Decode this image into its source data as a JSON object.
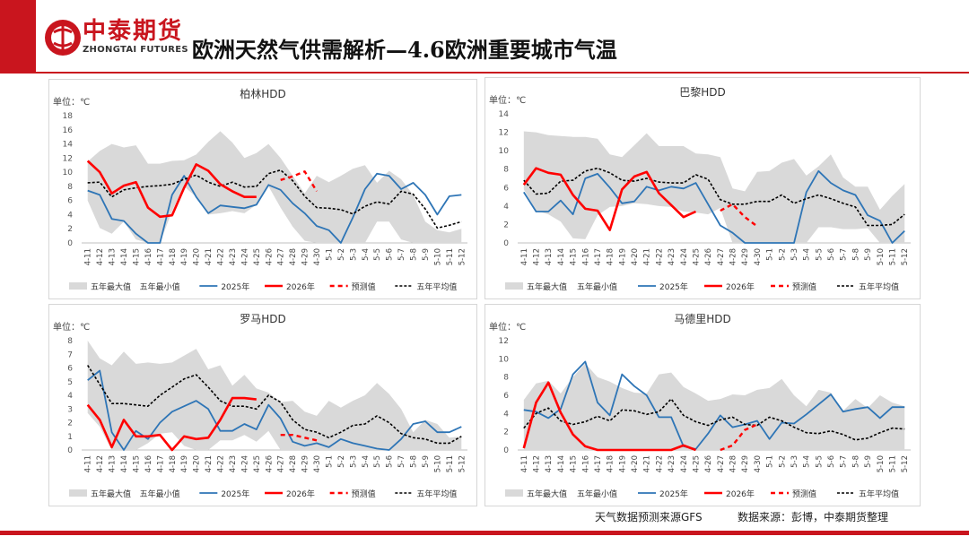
{
  "header": {
    "logo_cn": "中泰期货",
    "logo_en": "ZHONGTAI FUTURES",
    "title": "欧洲天然气供需解析—4.6欧洲重要城市气温"
  },
  "footer": {
    "source_left": "天气数据预测来源GFS",
    "source_right": "数据来源：彭博，中泰期货整理"
  },
  "colors": {
    "brand": "#c9151e",
    "band": "#d9d9d9",
    "y2025": "#2e75b6",
    "y2026": "#ff0000",
    "forecast": "#ff0000",
    "avg": "#000000"
  },
  "categories": [
    "4-11",
    "4-12",
    "4-13",
    "4-14",
    "4-15",
    "4-16",
    "4-17",
    "4-18",
    "4-19",
    "4-20",
    "4-21",
    "4-22",
    "4-23",
    "4-24",
    "4-25",
    "4-26",
    "4-27",
    "4-28",
    "4-29",
    "4-30",
    "5-1",
    "5-2",
    "5-3",
    "5-4",
    "5-5",
    "5-6",
    "5-7",
    "5-8",
    "5-9",
    "5-10",
    "5-11",
    "5-12"
  ],
  "chart_data": [
    {
      "type": "line",
      "title": "柏林HDD",
      "unit_label": "单位：℃",
      "ylim": [
        0,
        18
      ],
      "yticks": [
        0,
        2,
        4,
        6,
        8,
        10,
        12,
        14,
        16,
        18
      ],
      "legend": [
        "五年最大值",
        "五年最小值",
        "2025年",
        "2026年",
        "预测值",
        "五年平均值"
      ],
      "series": {
        "max5": [
          11.5,
          13.0,
          14.0,
          13.5,
          13.8,
          11.2,
          11.2,
          11.6,
          11.7,
          12.5,
          14.3,
          15.8,
          14.2,
          12.0,
          12.7,
          14.0,
          12.0,
          9.5,
          7.0,
          9.5,
          8.6,
          9.5,
          10.5,
          11.0,
          8.5,
          10.2,
          9.0,
          6.8,
          3.0,
          1.8,
          1.5,
          2.0
        ],
        "min5": [
          6.0,
          2.1,
          1.3,
          3.0,
          0.5,
          0,
          0,
          4.5,
          8.0,
          6.5,
          4.0,
          4.2,
          4.5,
          4.2,
          5.4,
          8.0,
          5.0,
          2.3,
          0.3,
          0,
          0,
          0,
          0,
          0,
          3.0,
          3.0,
          0.5,
          0,
          0,
          0,
          0,
          0
        ],
        "y2025": [
          7.4,
          6.8,
          3.4,
          3.1,
          1.3,
          0,
          0,
          6.8,
          9.5,
          6.5,
          4.2,
          5.3,
          5.1,
          4.9,
          5.4,
          8.2,
          7.5,
          5.6,
          4.2,
          2.4,
          1.8,
          0,
          3.6,
          7.6,
          9.8,
          9.5,
          7.6,
          8.5,
          6.8,
          4.0,
          6.6,
          6.8
        ],
        "y2026": [
          11.6,
          10.0,
          7.0,
          8.1,
          8.6,
          5.0,
          3.7,
          3.9,
          7.8,
          11.1,
          10.2,
          8.3,
          7.3,
          6.5,
          6.5,
          null,
          null,
          null,
          null,
          null,
          null,
          null,
          null,
          null,
          null,
          null,
          null,
          null,
          null,
          null,
          null,
          null
        ],
        "forecast": [
          null,
          null,
          null,
          null,
          null,
          null,
          null,
          null,
          null,
          null,
          null,
          null,
          null,
          null,
          null,
          null,
          8.9,
          9.4,
          10.1,
          7.3,
          null,
          null,
          null,
          null,
          null,
          null,
          null,
          null,
          null,
          null,
          null,
          null
        ],
        "avg5": [
          8.5,
          8.6,
          6.5,
          7.5,
          7.8,
          8.0,
          8.1,
          8.3,
          9.0,
          9.6,
          8.6,
          8.0,
          8.6,
          7.9,
          8.0,
          9.8,
          10.3,
          8.8,
          6.6,
          5.0,
          4.9,
          4.7,
          4.1,
          5.2,
          5.8,
          5.5,
          7.3,
          6.9,
          4.8,
          2.1,
          2.5,
          3.0
        ]
      }
    },
    {
      "type": "line",
      "title": "巴黎HDD",
      "unit_label": "单位：℃",
      "ylim": [
        0,
        14
      ],
      "yticks": [
        0,
        2,
        4,
        6,
        8,
        10,
        12,
        14
      ],
      "legend": [
        "五年最大值",
        "五年最小值",
        "2025年",
        "2026年",
        "预测值",
        "五年平均值"
      ],
      "series": {
        "max5": [
          12.1,
          12.0,
          11.7,
          11.6,
          11.5,
          11.5,
          11.3,
          9.6,
          9.3,
          10.6,
          11.9,
          10.5,
          10.5,
          10.5,
          9.7,
          9.6,
          9.3,
          5.9,
          5.6,
          7.7,
          7.8,
          8.7,
          9.1,
          7.3,
          8.3,
          9.6,
          7.1,
          6.1,
          6.1,
          3.6,
          5.1,
          6.4
        ],
        "min5": [
          5.8,
          3.5,
          3.1,
          2.3,
          0.5,
          0.4,
          3.0,
          3.9,
          4.0,
          4.3,
          4.2,
          4.0,
          3.9,
          3.4,
          3.3,
          3.1,
          3.8,
          0,
          0,
          0,
          0,
          0,
          0,
          0,
          1.7,
          1.7,
          1.5,
          1.5,
          1.6,
          0,
          0,
          0
        ],
        "y2025": [
          5.5,
          3.4,
          3.4,
          4.6,
          3.1,
          7.0,
          7.5,
          6.0,
          4.3,
          4.5,
          6.1,
          5.7,
          6.1,
          5.9,
          6.5,
          4.2,
          1.9,
          1.1,
          0,
          0,
          0,
          0,
          0,
          5.5,
          7.8,
          6.5,
          5.7,
          5.2,
          3.0,
          2.4,
          0,
          1.3
        ],
        "y2026": [
          6.3,
          8.1,
          7.6,
          7.4,
          5.2,
          3.7,
          3.5,
          1.4,
          5.8,
          7.2,
          7.7,
          5.4,
          4.1,
          2.8,
          3.4,
          null,
          null,
          null,
          null,
          null,
          null,
          null,
          null,
          null,
          null,
          null,
          null,
          null,
          null,
          null,
          null,
          null
        ],
        "forecast": [
          null,
          null,
          null,
          null,
          null,
          null,
          null,
          null,
          null,
          null,
          null,
          null,
          null,
          null,
          null,
          null,
          3.5,
          4.2,
          2.8,
          1.8,
          null,
          null,
          null,
          null,
          null,
          null,
          null,
          null,
          null,
          null,
          null,
          null
        ],
        "avg5": [
          6.8,
          5.3,
          5.4,
          6.7,
          6.8,
          7.8,
          8.1,
          7.6,
          6.8,
          6.7,
          7.0,
          6.6,
          6.5,
          6.5,
          7.4,
          6.9,
          4.7,
          4.2,
          4.2,
          4.5,
          4.5,
          5.2,
          4.3,
          4.8,
          5.2,
          4.8,
          4.3,
          3.9,
          1.9,
          1.9,
          2.0,
          3.1
        ]
      }
    },
    {
      "type": "line",
      "title": "罗马HDD",
      "unit_label": "单位：℃",
      "ylim": [
        0,
        8
      ],
      "yticks": [
        0,
        1,
        2,
        3,
        4,
        5,
        6,
        7,
        8
      ],
      "legend": [
        "五年最大值",
        "五年最小值",
        "2025年",
        "2026年",
        "预测值",
        "五年平均值"
      ],
      "series": {
        "max5": [
          8.0,
          6.7,
          6.2,
          7.2,
          6.3,
          6.4,
          6.3,
          6.4,
          6.9,
          7.4,
          5.9,
          6.2,
          4.7,
          5.5,
          4.5,
          4.2,
          3.5,
          3.6,
          2.8,
          2.5,
          3.6,
          3.1,
          3.6,
          4.0,
          4.9,
          4.1,
          3.0,
          1.3,
          2.2,
          1.9,
          0.9,
          1.0
        ],
        "min5": [
          2.7,
          1.7,
          0,
          0,
          0,
          0.5,
          1.2,
          1.3,
          0.3,
          0,
          0,
          0.7,
          0.7,
          1.1,
          0.6,
          1.4,
          0,
          0,
          0,
          0,
          0,
          0,
          0,
          0,
          0,
          0,
          0,
          0,
          0,
          0,
          0,
          0
        ],
        "y2025": [
          5.1,
          5.8,
          1.3,
          0,
          1.4,
          0.8,
          2.0,
          2.8,
          3.2,
          3.6,
          3.0,
          1.4,
          1.4,
          1.9,
          1.5,
          3.3,
          2.3,
          0.6,
          0.3,
          0.5,
          0.2,
          0.8,
          0.5,
          0.3,
          0.1,
          0,
          0.8,
          1.9,
          2.1,
          1.3,
          1.3,
          1.7
        ],
        "y2026": [
          3.3,
          2.2,
          0.2,
          2.2,
          1.0,
          1.0,
          1.1,
          0,
          1.0,
          0.8,
          0.9,
          2.2,
          3.8,
          3.8,
          3.7,
          null,
          null,
          null,
          null,
          null,
          null,
          null,
          null,
          null,
          null,
          null,
          null,
          null,
          null,
          null,
          null,
          null
        ],
        "forecast": [
          null,
          null,
          null,
          null,
          null,
          null,
          null,
          null,
          null,
          null,
          null,
          null,
          null,
          null,
          null,
          null,
          1.1,
          1.1,
          0.9,
          0.7,
          null,
          null,
          null,
          null,
          null,
          null,
          null,
          null,
          null,
          null,
          null,
          null
        ],
        "avg5": [
          6.2,
          4.8,
          3.4,
          3.4,
          3.3,
          3.2,
          4.0,
          4.6,
          5.2,
          5.5,
          4.6,
          3.6,
          3.2,
          3.2,
          3.0,
          4.0,
          3.5,
          2.2,
          1.5,
          1.3,
          0.9,
          1.3,
          1.8,
          1.9,
          2.5,
          2.0,
          1.2,
          0.9,
          0.8,
          0.5,
          0.5,
          1.0
        ]
      }
    },
    {
      "type": "line",
      "title": "马德里HDD",
      "unit_label": "单位：℃",
      "ylim": [
        0,
        12
      ],
      "yticks": [
        0,
        2,
        4,
        6,
        8,
        10,
        12
      ],
      "legend": [
        "五年最大值",
        "五年最小值",
        "2025年",
        "2026年",
        "预测值",
        "五年平均值"
      ],
      "series": {
        "max5": [
          5.5,
          7.3,
          7.6,
          6.2,
          8.0,
          9.5,
          8.0,
          7.5,
          6.8,
          6.3,
          6.2,
          8.3,
          8.5,
          6.9,
          6.2,
          5.4,
          5.6,
          6.1,
          6.0,
          6.6,
          6.8,
          7.8,
          6.0,
          4.8,
          6.6,
          6.3,
          4.3,
          5.6,
          4.6,
          6.0,
          5.2,
          4.8
        ],
        "min5": [
          0,
          0,
          0,
          0,
          0,
          0,
          0,
          0,
          0,
          0,
          0,
          0,
          0,
          0,
          0,
          0,
          0,
          0,
          0,
          0,
          0,
          0,
          0,
          0,
          0,
          0,
          0,
          0,
          0,
          0,
          0,
          0
        ],
        "y2025": [
          4.4,
          4.2,
          3.5,
          4.5,
          8.3,
          9.7,
          5.2,
          3.8,
          8.3,
          7.0,
          6.0,
          3.6,
          3.6,
          0.4,
          0.1,
          1.8,
          3.8,
          2.5,
          2.8,
          3.2,
          1.2,
          3.0,
          2.9,
          3.9,
          5.0,
          6.1,
          4.2,
          4.5,
          4.7,
          3.5,
          4.7,
          4.7
        ],
        "y2026": [
          0.2,
          5.2,
          7.4,
          4.1,
          1.7,
          0.4,
          0,
          0,
          0,
          0,
          0,
          0,
          0,
          0.5,
          0,
          null,
          null,
          null,
          null,
          null,
          null,
          null,
          null,
          null,
          null,
          null,
          null,
          null,
          null,
          null,
          null,
          null
        ],
        "forecast": [
          null,
          null,
          null,
          null,
          null,
          null,
          null,
          null,
          null,
          null,
          null,
          null,
          null,
          null,
          null,
          null,
          0,
          0.5,
          2.2,
          2.8,
          null,
          null,
          null,
          null,
          null,
          null,
          null,
          null,
          null,
          null,
          null,
          null
        ],
        "avg5": [
          2.4,
          4.0,
          4.6,
          3.2,
          2.8,
          3.1,
          3.7,
          3.2,
          4.4,
          4.3,
          3.9,
          4.2,
          5.6,
          3.8,
          3.1,
          2.7,
          3.3,
          3.6,
          2.8,
          2.7,
          3.6,
          3.2,
          2.5,
          1.9,
          1.8,
          2.1,
          1.7,
          1.1,
          1.3,
          1.9,
          2.4,
          2.3
        ]
      }
    }
  ]
}
